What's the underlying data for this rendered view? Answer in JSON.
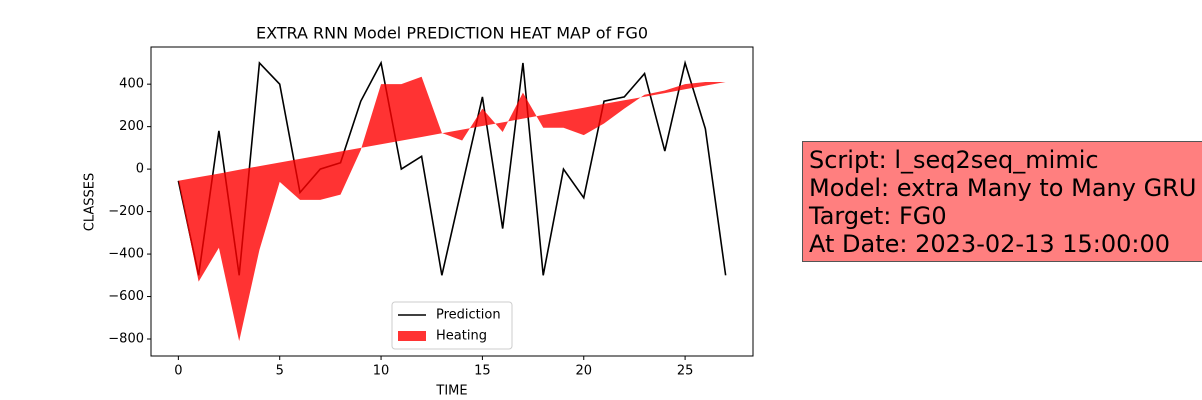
{
  "chart_data": {
    "type": "line-fill",
    "title": "EXTRA RNN Model PREDICTION HEAT MAP of FG0",
    "x_label": "TIME",
    "y_label": "CLASSES",
    "x": [
      0,
      1,
      2,
      3,
      4,
      5,
      6,
      7,
      8,
      9,
      10,
      11,
      12,
      13,
      14,
      15,
      16,
      17,
      18,
      19,
      20,
      21,
      22,
      23,
      24,
      25,
      26,
      27
    ],
    "series": [
      {
        "name": "Prediction",
        "color": "#000000",
        "values": [
          -55,
          -500,
          180,
          -500,
          500,
          400,
          -110,
          0,
          30,
          320,
          500,
          0,
          60,
          -500,
          -80,
          340,
          -280,
          500,
          -500,
          0,
          -135,
          320,
          340,
          450,
          85,
          500,
          190,
          -500
        ]
      },
      {
        "name": "Heating",
        "color": "#ff0000",
        "y1": [
          -55,
          -530,
          -370,
          -810,
          -380,
          -60,
          -145,
          -145,
          -120,
          90,
          400,
          400,
          435,
          170,
          135,
          285,
          175,
          360,
          195,
          195,
          160,
          215,
          285,
          350,
          370,
          400,
          410,
          410
        ],
        "y2": [
          -55,
          -38,
          -21,
          -3,
          14,
          31,
          48,
          65,
          83,
          100,
          117,
          134,
          151,
          169,
          186,
          203,
          220,
          238,
          255,
          272,
          289,
          307,
          324,
          341,
          358,
          376,
          393,
          410
        ]
      }
    ],
    "xlim": [
      -1.35,
      28.35
    ],
    "ylim": [
      -880,
      575
    ],
    "xticks": [
      0,
      5,
      10,
      15,
      20,
      25
    ],
    "yticks": [
      {
        "value": -800,
        "label": "−800"
      },
      {
        "value": -600,
        "label": "−600"
      },
      {
        "value": -400,
        "label": "−400"
      },
      {
        "value": -200,
        "label": "−200"
      },
      0,
      200,
      400
    ],
    "legend": "lower center",
    "annotation": [
      "Script: l_seq2seq_mimic",
      "Model: extra Many to Many GRU",
      "Target: FG0",
      "At Date: 2023-02-13 15:00:00"
    ]
  }
}
